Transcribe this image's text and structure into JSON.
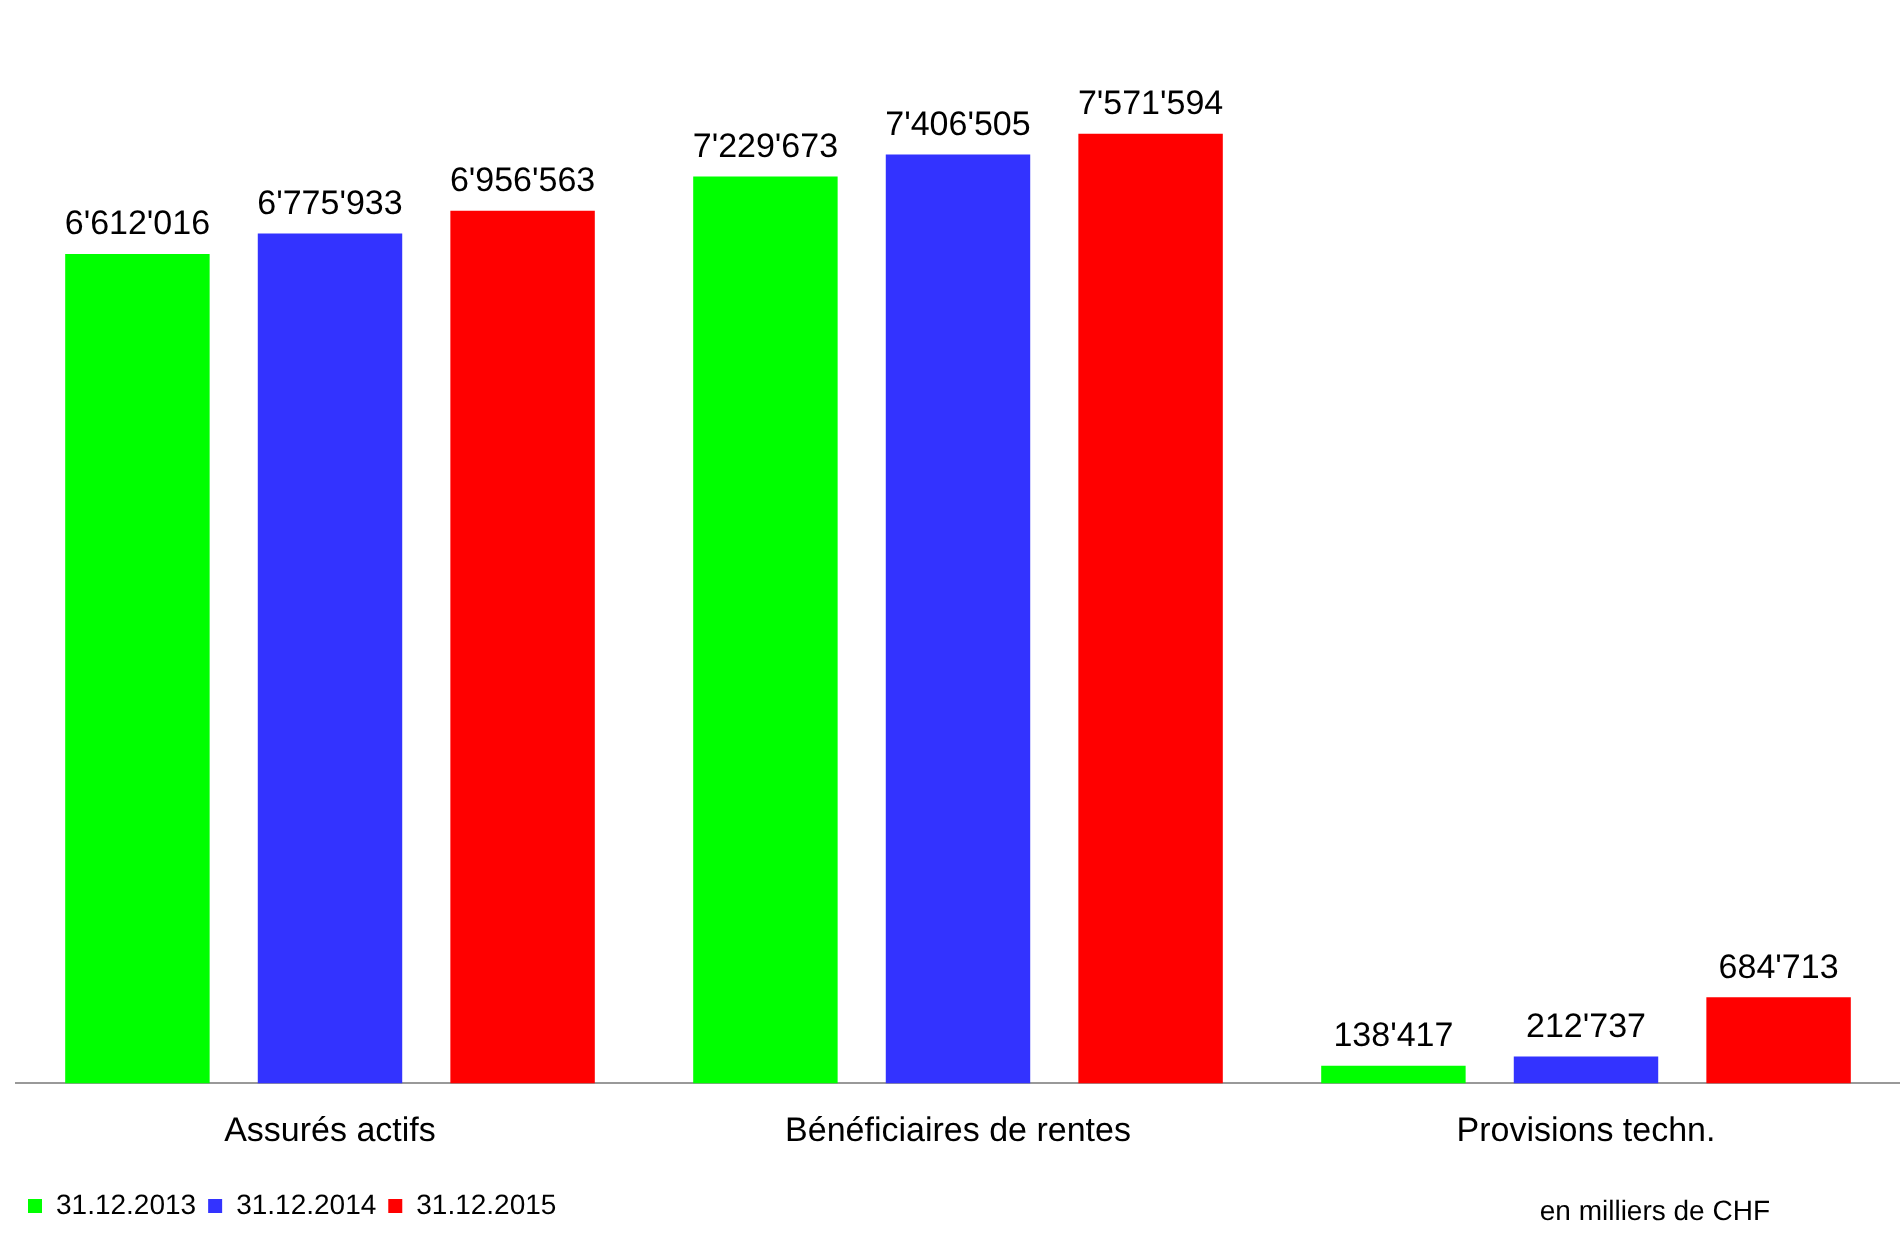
{
  "chart_data": {
    "type": "bar",
    "categories": [
      "Assurés actifs",
      "Bénéficiaires de rentes",
      "Provisions techn."
    ],
    "series": [
      {
        "name": "31.12.2013",
        "color": "#00ff00",
        "values": [
          6612016,
          7229673,
          138417
        ],
        "value_labels": [
          "6'612'016",
          "7'229'673",
          "138'417"
        ]
      },
      {
        "name": "31.12.2014",
        "color": "#3333ff",
        "values": [
          6775933,
          7406505,
          212737
        ],
        "value_labels": [
          "6'775'933",
          "7'406'505",
          "212'737"
        ]
      },
      {
        "name": "31.12.2015",
        "color": "#ff0000",
        "values": [
          6956563,
          7571594,
          684713
        ],
        "value_labels": [
          "6'956'563",
          "7'571'594",
          "684'713"
        ]
      }
    ],
    "legend": "bottom",
    "grid": false,
    "annotations": [
      "en milliers de CHF"
    ]
  }
}
